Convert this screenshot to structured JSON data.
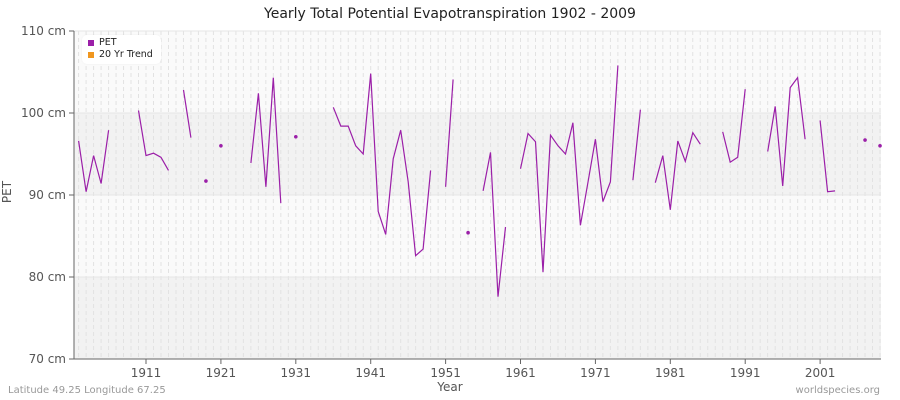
{
  "title": "Yearly Total Potential Evapotranspiration 1902 - 2009",
  "footer": {
    "left": "Latitude 49.25 Longitude 67.25",
    "right": "worldspecies.org"
  },
  "legend": [
    {
      "label": "PET",
      "color": "#9b1fa8"
    },
    {
      "label": "20 Yr Trend",
      "color": "#f0961e"
    }
  ],
  "chart_data": {
    "type": "line",
    "title": "Yearly Total Potential Evapotranspiration 1902 - 2009",
    "xlabel": "Year",
    "ylabel": "PET",
    "ylim": [
      70,
      110
    ],
    "xlim": [
      1902,
      2009
    ],
    "yticks": [
      "70 cm",
      "80 cm",
      "90 cm",
      "100 cm",
      "110 cm"
    ],
    "xticks": [
      "1911",
      "1921",
      "1931",
      "1941",
      "1951",
      "1961",
      "1971",
      "1981",
      "1991",
      "2001"
    ],
    "grid": true,
    "legend_position": "top-left",
    "series": [
      {
        "name": "PET",
        "color": "#9b1fa8",
        "segments": [
          [
            [
              1902,
              96.6
            ],
            [
              1903,
              90.4
            ],
            [
              1904,
              94.8
            ],
            [
              1905,
              91.4
            ],
            [
              1906,
              97.9
            ]
          ],
          [
            [
              1910,
              100.3
            ],
            [
              1911,
              94.8
            ],
            [
              1912,
              95.1
            ],
            [
              1913,
              94.6
            ],
            [
              1914,
              93.0
            ]
          ],
          [
            [
              1916,
              102.8
            ],
            [
              1917,
              97.0
            ]
          ],
          [
            [
              1919,
              91.7
            ]
          ],
          [
            [
              1921,
              96.0
            ]
          ],
          [
            [
              1925,
              93.9
            ],
            [
              1926,
              102.4
            ],
            [
              1927,
              91.0
            ],
            [
              1928,
              104.3
            ],
            [
              1929,
              89.0
            ]
          ],
          [
            [
              1931,
              97.1
            ]
          ],
          [
            [
              1936,
              100.7
            ],
            [
              1937,
              98.4
            ],
            [
              1938,
              98.4
            ],
            [
              1939,
              96.0
            ],
            [
              1940,
              95.0
            ],
            [
              1941,
              104.8
            ],
            [
              1942,
              88.0
            ],
            [
              1943,
              85.2
            ],
            [
              1944,
              94.4
            ],
            [
              1945,
              97.9
            ],
            [
              1946,
              91.6
            ],
            [
              1947,
              82.6
            ],
            [
              1948,
              83.4
            ],
            [
              1949,
              93.0
            ]
          ],
          [
            [
              1951,
              91.0
            ],
            [
              1952,
              104.1
            ]
          ],
          [
            [
              1954,
              85.4
            ]
          ],
          [
            [
              1956,
              90.5
            ],
            [
              1957,
              95.2
            ],
            [
              1958,
              77.6
            ],
            [
              1959,
              86.1
            ]
          ],
          [
            [
              1961,
              93.2
            ],
            [
              1962,
              97.5
            ],
            [
              1963,
              96.5
            ],
            [
              1964,
              80.6
            ],
            [
              1965,
              97.3
            ],
            [
              1966,
              96.0
            ],
            [
              1967,
              95.0
            ],
            [
              1968,
              98.8
            ],
            [
              1969,
              86.3
            ],
            [
              1970,
              91.5
            ],
            [
              1971,
              96.8
            ],
            [
              1972,
              89.2
            ],
            [
              1973,
              91.6
            ],
            [
              1974,
              105.8
            ]
          ],
          [
            [
              1976,
              91.8
            ],
            [
              1977,
              100.4
            ]
          ],
          [
            [
              1979,
              91.5
            ],
            [
              1980,
              94.8
            ],
            [
              1981,
              88.2
            ],
            [
              1982,
              96.6
            ],
            [
              1983,
              94.1
            ],
            [
              1984,
              97.6
            ],
            [
              1985,
              96.2
            ]
          ],
          [
            [
              1988,
              97.7
            ],
            [
              1989,
              94.0
            ],
            [
              1990,
              94.6
            ],
            [
              1991,
              102.9
            ]
          ],
          [
            [
              1994,
              95.3
            ],
            [
              1995,
              100.8
            ],
            [
              1996,
              91.1
            ],
            [
              1997,
              103.1
            ],
            [
              1998,
              104.3
            ],
            [
              1999,
              96.8
            ]
          ],
          [
            [
              2001,
              99.1
            ],
            [
              2002,
              90.4
            ],
            [
              2003,
              90.5
            ]
          ],
          [
            [
              2007,
              96.7
            ]
          ],
          [
            [
              2009,
              96.0
            ]
          ]
        ]
      },
      {
        "name": "20 Yr Trend",
        "color": "#f0961e",
        "segments": []
      }
    ]
  }
}
